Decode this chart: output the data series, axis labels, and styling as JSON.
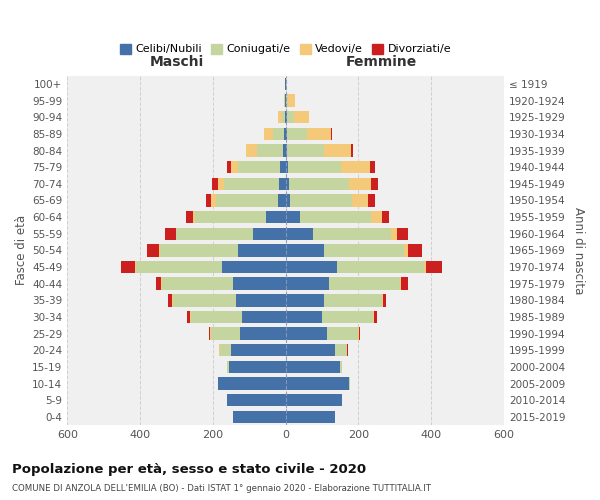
{
  "age_groups": [
    "0-4",
    "5-9",
    "10-14",
    "15-19",
    "20-24",
    "25-29",
    "30-34",
    "35-39",
    "40-44",
    "45-49",
    "50-54",
    "55-59",
    "60-64",
    "65-69",
    "70-74",
    "75-79",
    "80-84",
    "85-89",
    "90-94",
    "95-99",
    "100+"
  ],
  "birth_years": [
    "2015-2019",
    "2010-2014",
    "2005-2009",
    "2000-2004",
    "1995-1999",
    "1990-1994",
    "1985-1989",
    "1980-1984",
    "1975-1979",
    "1970-1974",
    "1965-1969",
    "1960-1964",
    "1955-1959",
    "1950-1954",
    "1945-1949",
    "1940-1944",
    "1935-1939",
    "1930-1934",
    "1925-1929",
    "1920-1924",
    "≤ 1919"
  ],
  "colors": {
    "celibi": "#4472a8",
    "coniugati": "#c5d5a0",
    "vedovi": "#f5c97a",
    "divorziati": "#cc2020"
  },
  "maschi": {
    "celibi": [
      145,
      160,
      185,
      155,
      150,
      125,
      120,
      135,
      145,
      175,
      130,
      90,
      55,
      22,
      18,
      15,
      8,
      5,
      3,
      2,
      2
    ],
    "coniugati": [
      0,
      0,
      2,
      5,
      30,
      80,
      140,
      175,
      195,
      235,
      215,
      210,
      195,
      170,
      150,
      115,
      70,
      30,
      8,
      0,
      0
    ],
    "vedovi": [
      0,
      0,
      0,
      0,
      2,
      2,
      2,
      2,
      2,
      3,
      2,
      2,
      5,
      12,
      18,
      20,
      30,
      25,
      10,
      3,
      0
    ],
    "divorziati": [
      0,
      0,
      0,
      0,
      2,
      3,
      8,
      10,
      15,
      40,
      35,
      30,
      18,
      15,
      15,
      12,
      2,
      0,
      0,
      0,
      0
    ]
  },
  "femmine": {
    "celibi": [
      135,
      155,
      175,
      150,
      135,
      115,
      100,
      105,
      120,
      140,
      105,
      75,
      40,
      12,
      10,
      7,
      5,
      5,
      3,
      2,
      2
    ],
    "coniugati": [
      0,
      0,
      2,
      5,
      35,
      85,
      140,
      160,
      195,
      240,
      220,
      215,
      195,
      170,
      165,
      145,
      100,
      55,
      20,
      5,
      0
    ],
    "vedovi": [
      0,
      0,
      0,
      0,
      0,
      2,
      2,
      2,
      2,
      5,
      10,
      15,
      30,
      45,
      60,
      80,
      75,
      65,
      40,
      20,
      3
    ],
    "divorziati": [
      0,
      0,
      0,
      0,
      2,
      3,
      8,
      10,
      20,
      45,
      40,
      30,
      20,
      18,
      18,
      15,
      5,
      2,
      0,
      0,
      0
    ]
  },
  "title": "Popolazione per età, sesso e stato civile - 2020",
  "subtitle": "COMUNE DI ANZOLA DELL'EMILIA (BO) - Dati ISTAT 1° gennaio 2020 - Elaborazione TUTTITALIA.IT",
  "xlabel_left": "Maschi",
  "xlabel_right": "Femmine",
  "ylabel_left": "Fasce di età",
  "ylabel_right": "Anni di nascita",
  "xlim": 600,
  "bg_color": "#f0f0f0",
  "grid_color": "#cccccc",
  "legend_labels": [
    "Celibi/Nubili",
    "Coniugati/e",
    "Vedovi/e",
    "Divorziati/e"
  ]
}
